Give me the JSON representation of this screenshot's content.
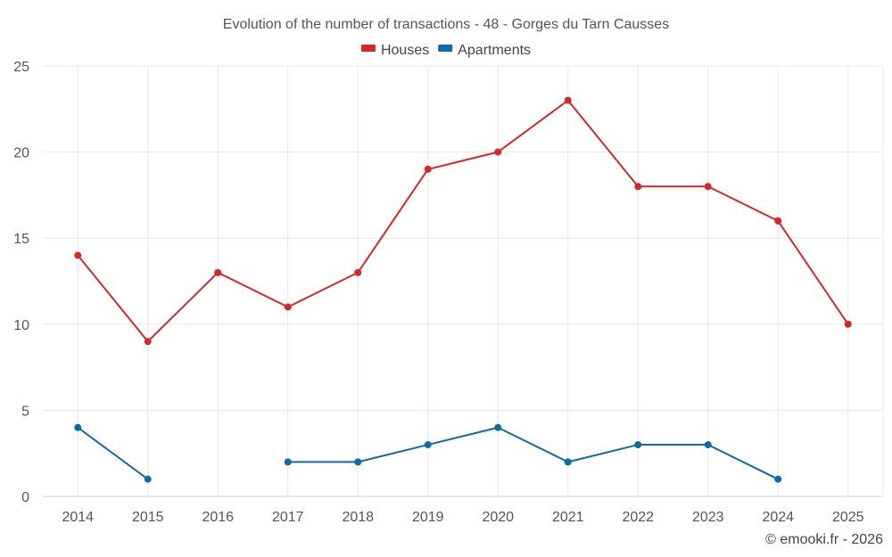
{
  "chart_data": {
    "type": "line",
    "title": "Evolution of the number of transactions - 48 - Gorges du Tarn Causses",
    "xlabel": "",
    "ylabel": "",
    "categories": [
      "2014",
      "2015",
      "2016",
      "2017",
      "2018",
      "2019",
      "2020",
      "2021",
      "2022",
      "2023",
      "2024",
      "2025"
    ],
    "ylim": [
      0,
      25
    ],
    "yticks": [
      "0",
      "5",
      "10",
      "15",
      "20",
      "25"
    ],
    "grid": true,
    "legend_position": "top-center",
    "series": [
      {
        "name": "Houses",
        "color": "#d62728",
        "values": [
          14,
          9,
          13,
          11,
          13,
          19,
          20,
          23,
          18,
          18,
          16,
          10
        ]
      },
      {
        "name": "Apartments",
        "color": "#0f6ba3",
        "values": [
          4,
          1,
          null,
          2,
          2,
          3,
          4,
          2,
          3,
          3,
          1,
          null
        ]
      }
    ]
  },
  "credit": "© emooki.fr - 2026"
}
